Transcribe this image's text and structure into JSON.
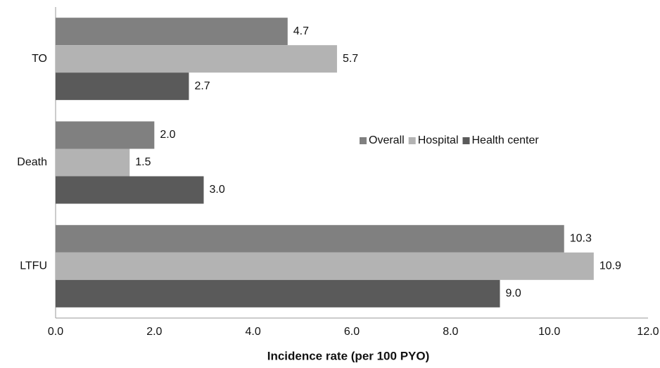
{
  "chart_data": {
    "type": "bar",
    "orientation": "horizontal",
    "x_label": "Incidence rate (per 100 PYO)",
    "categories": [
      "TO",
      "Death",
      "LTFU"
    ],
    "series": [
      {
        "name": "Overall",
        "color": "#808080",
        "values": [
          4.7,
          2.0,
          10.3
        ],
        "value_labels": [
          "4.7",
          "2.0",
          "10.3"
        ]
      },
      {
        "name": "Hospital",
        "color": "#b3b3b3",
        "values": [
          5.7,
          1.5,
          10.9
        ]
      },
      {
        "name": "Health center",
        "color": "#5a5a5a",
        "values": [
          2.7,
          3.0,
          9.0
        ],
        "value_labels": [
          "2.7",
          "3.0",
          "9.0"
        ]
      }
    ],
    "xlim": [
      0,
      12
    ],
    "xticks": [
      {
        "value": 0,
        "label": "0.0"
      },
      {
        "value": 2,
        "label": "2.0"
      },
      {
        "value": 4,
        "label": "4.0"
      },
      {
        "value": 6,
        "label": "6.0"
      },
      {
        "value": 8,
        "label": "8.0"
      },
      {
        "value": 10,
        "label": "10.0"
      },
      {
        "value": 12,
        "label": "12.0"
      }
    ],
    "legend": "right",
    "grid": false
  }
}
